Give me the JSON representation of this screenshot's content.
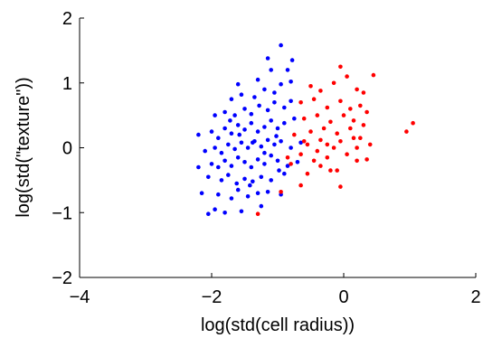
{
  "chart_data": {
    "type": "scatter",
    "xlabel": "log(std(cell radius))",
    "ylabel": "log(std(\"texture\"))",
    "xlim": [
      -4,
      2
    ],
    "ylim": [
      -2,
      2
    ],
    "xticks": [
      -4,
      -2,
      0,
      2
    ],
    "yticks": [
      -2,
      -1,
      0,
      1,
      2
    ],
    "xtick_labels": [
      "−4",
      "−2",
      "0",
      "2"
    ],
    "ytick_labels": [
      "−2",
      "−1",
      "0",
      "1",
      "2"
    ],
    "grid": false,
    "legend": "none",
    "series": [
      {
        "color": "#0000ff",
        "points": [
          [
            -2.05,
            -1.02
          ],
          [
            -1.95,
            -0.95
          ],
          [
            -1.8,
            -1.0
          ],
          [
            -1.55,
            -0.98
          ],
          [
            -1.25,
            -0.9
          ],
          [
            -2.15,
            -0.7
          ],
          [
            -1.9,
            -0.72
          ],
          [
            -1.7,
            -0.78
          ],
          [
            -1.6,
            -0.65
          ],
          [
            -1.45,
            -0.75
          ],
          [
            -1.3,
            -0.7
          ],
          [
            -1.15,
            -0.68
          ],
          [
            -0.95,
            -0.72
          ],
          [
            -2.05,
            -0.45
          ],
          [
            -1.85,
            -0.5
          ],
          [
            -1.75,
            -0.42
          ],
          [
            -1.62,
            -0.55
          ],
          [
            -1.5,
            -0.48
          ],
          [
            -1.38,
            -0.52
          ],
          [
            -1.25,
            -0.45
          ],
          [
            -1.1,
            -0.5
          ],
          [
            -0.9,
            -0.4
          ],
          [
            -2.2,
            -0.3
          ],
          [
            -2.0,
            -0.25
          ],
          [
            -1.9,
            -0.3
          ],
          [
            -1.8,
            -0.2
          ],
          [
            -1.7,
            -0.28
          ],
          [
            -1.6,
            -0.15
          ],
          [
            -1.5,
            -0.22
          ],
          [
            -1.4,
            -0.3
          ],
          [
            -1.3,
            -0.18
          ],
          [
            -1.2,
            -0.25
          ],
          [
            -1.1,
            -0.12
          ],
          [
            -1.0,
            -0.2
          ],
          [
            -0.85,
            -0.28
          ],
          [
            -0.7,
            -0.22
          ],
          [
            -2.1,
            -0.05
          ],
          [
            -1.95,
            0.0
          ],
          [
            -1.85,
            -0.08
          ],
          [
            -1.75,
            0.05
          ],
          [
            -1.65,
            -0.02
          ],
          [
            -1.55,
            0.08
          ],
          [
            -1.45,
            0.0
          ],
          [
            -1.35,
            0.1
          ],
          [
            -1.25,
            0.02
          ],
          [
            -1.15,
            0.12
          ],
          [
            -1.05,
            0.05
          ],
          [
            -0.95,
            0.1
          ],
          [
            -0.8,
            0.0
          ],
          [
            -0.65,
            0.08
          ],
          [
            -2.2,
            0.2
          ],
          [
            -2.0,
            0.25
          ],
          [
            -1.9,
            0.15
          ],
          [
            -1.8,
            0.3
          ],
          [
            -1.7,
            0.22
          ],
          [
            -1.6,
            0.35
          ],
          [
            -1.5,
            0.28
          ],
          [
            -1.4,
            0.38
          ],
          [
            -1.3,
            0.25
          ],
          [
            -1.2,
            0.32
          ],
          [
            -1.1,
            0.42
          ],
          [
            -1.0,
            0.3
          ],
          [
            -0.9,
            0.38
          ],
          [
            -0.75,
            0.45
          ],
          [
            -1.95,
            0.5
          ],
          [
            -1.8,
            0.55
          ],
          [
            -1.65,
            0.5
          ],
          [
            -1.5,
            0.6
          ],
          [
            -1.4,
            0.52
          ],
          [
            -1.28,
            0.65
          ],
          [
            -1.15,
            0.58
          ],
          [
            -1.05,
            0.7
          ],
          [
            -0.9,
            0.62
          ],
          [
            -0.8,
            0.72
          ],
          [
            -1.7,
            0.75
          ],
          [
            -1.55,
            0.82
          ],
          [
            -1.35,
            0.78
          ],
          [
            -1.2,
            0.9
          ],
          [
            -1.05,
            0.85
          ],
          [
            -0.95,
            0.98
          ],
          [
            -0.8,
            1.02
          ],
          [
            -1.6,
            0.98
          ],
          [
            -1.3,
            1.05
          ],
          [
            -1.1,
            1.2
          ],
          [
            -0.85,
            1.2
          ],
          [
            -0.78,
            1.35
          ],
          [
            -1.15,
            1.38
          ],
          [
            -0.95,
            1.58
          ],
          [
            -1.38,
            0.08
          ],
          [
            -1.2,
            -0.08
          ],
          [
            -0.98,
            -0.35
          ],
          [
            -1.58,
            0.2
          ],
          [
            -1.42,
            -0.58
          ],
          [
            -1.72,
            0.42
          ],
          [
            -1.02,
            0.18
          ]
        ]
      },
      {
        "color": "#ff0000",
        "points": [
          [
            -1.3,
            -1.02
          ],
          [
            -0.95,
            -0.68
          ],
          [
            -0.65,
            -0.58
          ],
          [
            -0.55,
            -0.4
          ],
          [
            -0.35,
            -0.28
          ],
          [
            -0.05,
            -0.6
          ],
          [
            -0.1,
            -0.35
          ],
          [
            -0.25,
            -0.15
          ],
          [
            -0.45,
            -0.2
          ],
          [
            -0.65,
            -0.1
          ],
          [
            -0.85,
            -0.15
          ],
          [
            -0.55,
            0.05
          ],
          [
            -0.35,
            0.12
          ],
          [
            -0.15,
            0.0
          ],
          [
            0.05,
            -0.1
          ],
          [
            0.2,
            -0.2
          ],
          [
            0.35,
            -0.18
          ],
          [
            -0.75,
            0.2
          ],
          [
            -0.5,
            0.25
          ],
          [
            -0.3,
            0.3
          ],
          [
            -0.1,
            0.22
          ],
          [
            0.1,
            0.3
          ],
          [
            0.25,
            0.15
          ],
          [
            0.4,
            0.05
          ],
          [
            -0.6,
            0.45
          ],
          [
            -0.4,
            0.5
          ],
          [
            -0.2,
            0.4
          ],
          [
            0.0,
            0.5
          ],
          [
            0.15,
            0.42
          ],
          [
            0.3,
            0.35
          ],
          [
            -0.65,
            0.7
          ],
          [
            -0.45,
            0.75
          ],
          [
            -0.25,
            0.62
          ],
          [
            -0.05,
            0.72
          ],
          [
            0.1,
            0.6
          ],
          [
            -0.5,
            0.95
          ],
          [
            -0.35,
            0.88
          ],
          [
            -0.15,
            1.0
          ],
          [
            0.2,
            0.9
          ],
          [
            0.05,
            1.1
          ],
          [
            -0.05,
            1.25
          ],
          [
            0.3,
            0.85
          ],
          [
            0.45,
            1.12
          ],
          [
            0.95,
            0.25
          ],
          [
            1.05,
            0.38
          ],
          [
            0.35,
            0.55
          ],
          [
            0.2,
            0.0
          ],
          [
            -0.2,
            -0.35
          ],
          [
            -0.8,
            -0.25
          ],
          [
            -0.05,
            0.1
          ],
          [
            -0.4,
            -0.05
          ],
          [
            0.15,
            0.15
          ],
          [
            -0.6,
            0.1
          ],
          [
            0.25,
            0.65
          ],
          [
            -0.25,
            0.05
          ]
        ]
      }
    ]
  }
}
